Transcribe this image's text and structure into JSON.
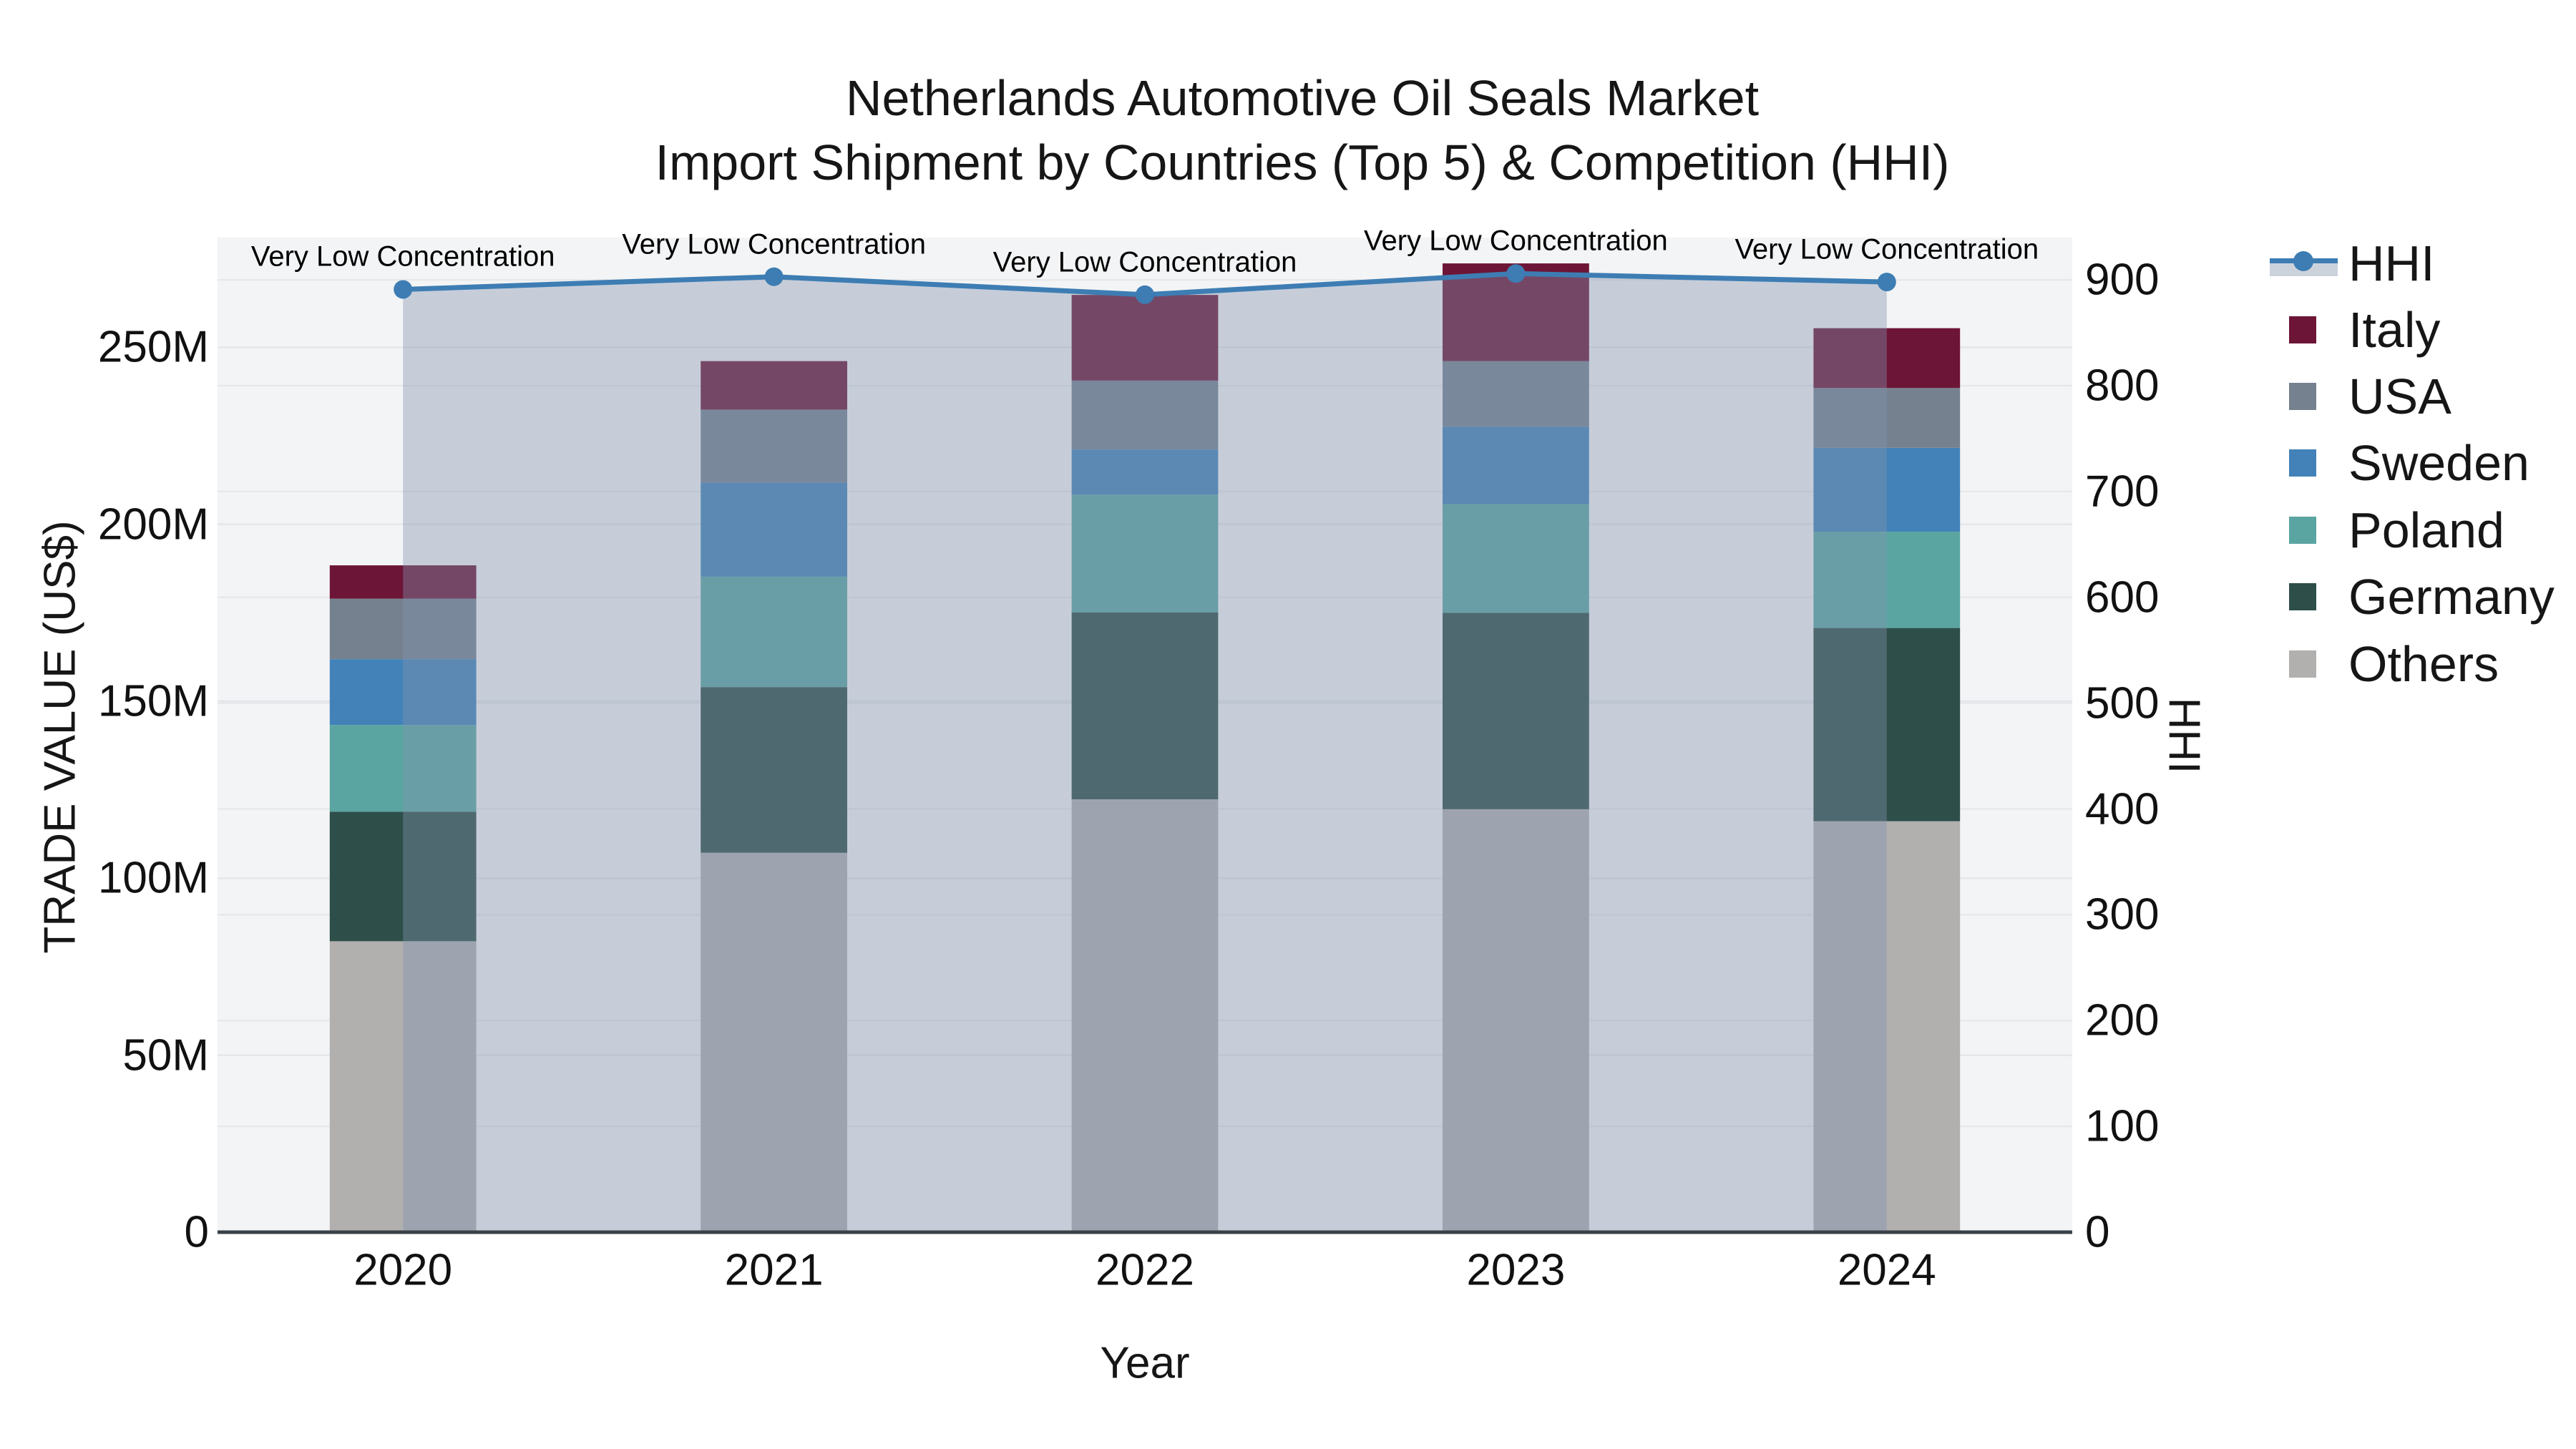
{
  "title": {
    "line1": "Netherlands Automotive Oil Seals Market",
    "line2": "Import Shipment by Countries (Top 5) & Competition (HHI)"
  },
  "chart_data": {
    "type": "combo-stacked-bar-with-line",
    "categories": [
      "2020",
      "2021",
      "2022",
      "2023",
      "2024"
    ],
    "unit": "Million US$",
    "bar_series": [
      {
        "name": "Others",
        "color": "#b1b0af",
        "values": [
          82.2,
          107.2,
          122.3,
          119.5,
          116.1
        ]
      },
      {
        "name": "Germany",
        "color": "#2d4e49",
        "values": [
          36.6,
          46.8,
          52.8,
          55.5,
          54.6
        ]
      },
      {
        "name": "Poland",
        "color": "#5aa5a1",
        "values": [
          24.5,
          31.2,
          33.3,
          30.7,
          27.2
        ]
      },
      {
        "name": "Sweden",
        "color": "#4282b8",
        "values": [
          18.6,
          26.6,
          12.7,
          21.8,
          23.7
        ]
      },
      {
        "name": "USA",
        "color": "#75818f",
        "values": [
          17.1,
          20.6,
          19.5,
          18.6,
          16.9
        ]
      },
      {
        "name": "Italy",
        "color": "#6d1536",
        "values": [
          9.4,
          13.7,
          24.2,
          27.6,
          16.9
        ]
      }
    ],
    "line_series": {
      "name": "HHI",
      "color": "#3d7db3",
      "area_fill_color": "rgba(130,148,175,0.40)",
      "values": [
        891,
        903,
        886,
        906,
        898
      ]
    },
    "annotations": [
      "Very Low Concentration",
      "Very Low Concentration",
      "Very Low Concentration",
      "Very Low Concentration",
      "Very Low Concentration"
    ],
    "xlabel": "Year",
    "ylabel_left": "TRADE VALUE (US$)",
    "ylabel_right": "HHI",
    "left_axis": {
      "tick_labels": [
        "0",
        "50M",
        "100M",
        "150M",
        "200M",
        "250M"
      ],
      "tick_values": [
        0,
        50,
        100,
        150,
        200,
        250
      ],
      "range": [
        0,
        281
      ]
    },
    "right_axis": {
      "tick_labels": [
        "0",
        "100",
        "200",
        "300",
        "400",
        "500",
        "600",
        "700",
        "800",
        "900"
      ],
      "tick_values": [
        0,
        100,
        200,
        300,
        400,
        500,
        600,
        700,
        800,
        900
      ],
      "range": [
        0,
        940
      ]
    },
    "legend": [
      {
        "label": "HHI",
        "type": "line"
      },
      {
        "label": "Italy",
        "type": "swatch",
        "color": "#6d1536"
      },
      {
        "label": "USA",
        "type": "swatch",
        "color": "#75818f"
      },
      {
        "label": "Sweden",
        "type": "swatch",
        "color": "#4282b8"
      },
      {
        "label": "Poland",
        "type": "swatch",
        "color": "#5aa5a1"
      },
      {
        "label": "Germany",
        "type": "swatch",
        "color": "#2d4e49"
      },
      {
        "label": "Others",
        "type": "swatch",
        "color": "#b1b0af"
      }
    ],
    "grid": true,
    "legend_position": "right",
    "plot_bg_color": "#f3f4f5",
    "gridline_color": "#e4e6e9",
    "axis_line_color": "#3a4148"
  }
}
